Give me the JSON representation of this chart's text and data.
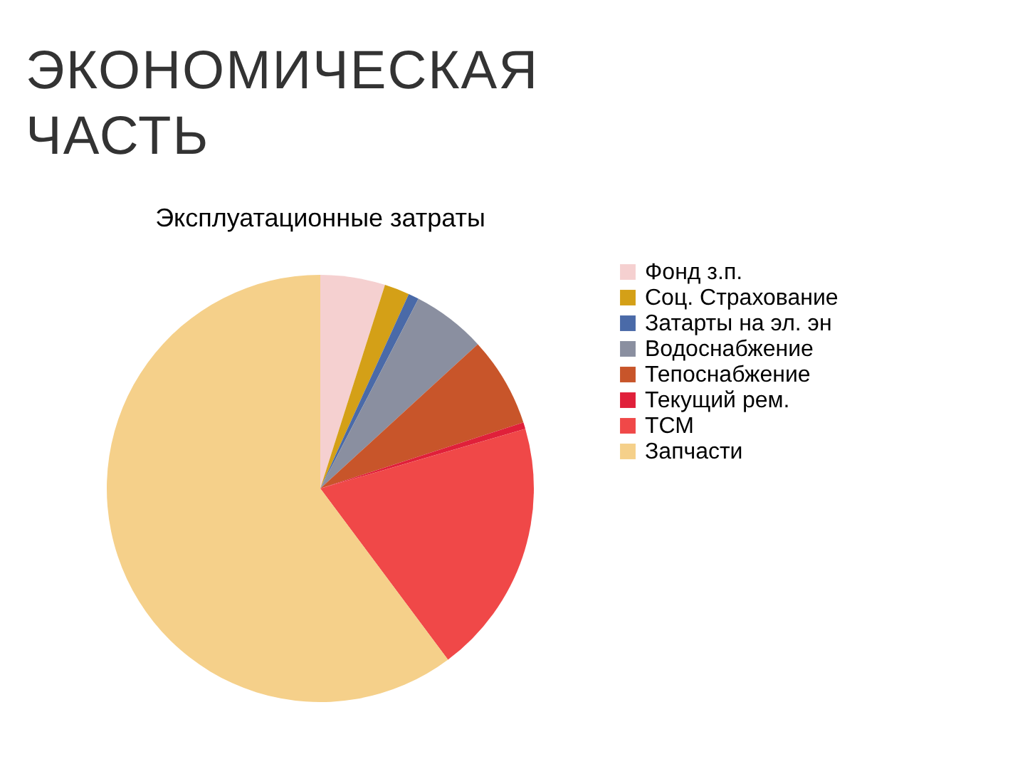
{
  "chart_data": {
    "type": "pie",
    "title": "Эксплуатационные затраты",
    "annotations": [
      "ЭКОНОМИЧЕСКАЯ ЧАСТЬ"
    ],
    "categories": [
      "Фонд з.п.",
      "Соц. Страхование",
      "Затарты на эл. эн",
      "Водоснабжение",
      "Тепоснабжение",
      "Текущий рем.",
      "ТСМ",
      "Запчасти"
    ],
    "values": [
      4.9,
      1.9,
      0.8,
      5.6,
      6.8,
      0.5,
      19.3,
      60.2
    ],
    "colors": [
      "#f5d0d0",
      "#d4a017",
      "#4a6aa8",
      "#8a8fa0",
      "#c8552a",
      "#e0203a",
      "#f04848",
      "#f5d08a"
    ],
    "legend": "right"
  }
}
